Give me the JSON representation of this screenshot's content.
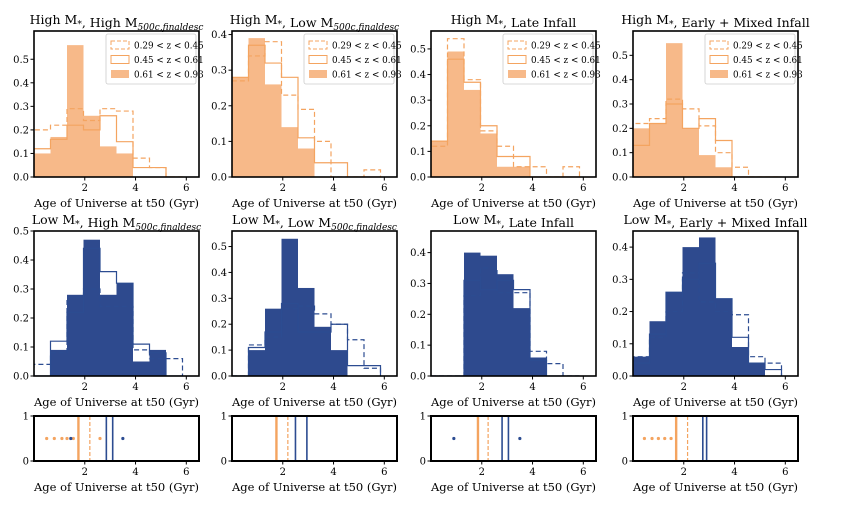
{
  "chart_data": {
    "type": "histogram-grid",
    "xlabel": "Age of Universe at t50 (Gyr)",
    "colors": {
      "orange": "#f4a460",
      "orange_fill": "#f7b989",
      "blue": "#2c4c91",
      "blue_fill": "#2e4a8e"
    },
    "legend": [
      "0.29 < z < 0.45",
      "0.45 < z < 0.61",
      "0.61 < z < 0.93"
    ],
    "panels": [
      {
        "title": "High M*, High M500c,finaldesc",
        "color": "orange",
        "legend": true,
        "xlim": [
          0,
          6.5
        ],
        "ylim": [
          0,
          0.62
        ],
        "xticks": [
          2,
          4,
          6
        ],
        "yticks": [
          0.0,
          0.1,
          0.2,
          0.3,
          0.4,
          0.5
        ],
        "edges": [
          0,
          0.65,
          1.3,
          1.95,
          2.6,
          3.25,
          3.9,
          4.55,
          5.2,
          5.85
        ],
        "series": [
          {
            "name": "0.29 < z < 0.45",
            "style": "dashed",
            "values": [
              0.2,
              0.22,
              0.29,
              0.24,
              0.29,
              0.28,
              0.08,
              0.04,
              0.0
            ]
          },
          {
            "name": "0.45 < z < 0.61",
            "style": "step",
            "values": [
              0.12,
              0.16,
              0.22,
              0.2,
              0.26,
              0.15,
              0.04,
              0.04,
              0.0
            ]
          },
          {
            "name": "0.61 < z < 0.93",
            "style": "filled",
            "values": [
              0.1,
              0.17,
              0.56,
              0.26,
              0.13,
              0.1,
              0.0,
              0.0,
              0.0
            ]
          }
        ]
      },
      {
        "title": "High M*, Low M500c,finaldesc",
        "color": "orange",
        "legend": true,
        "xlim": [
          0,
          6.5
        ],
        "ylim": [
          0,
          0.41
        ],
        "xticks": [
          2,
          4,
          6
        ],
        "yticks": [
          0.0,
          0.1,
          0.2,
          0.3,
          0.4
        ],
        "edges": [
          0,
          0.65,
          1.3,
          1.95,
          2.6,
          3.25,
          3.9,
          4.55,
          5.2,
          5.85
        ],
        "series": [
          {
            "name": "0.29 < z < 0.45",
            "style": "dashed",
            "values": [
              0.27,
              0.34,
              0.38,
              0.23,
              0.19,
              0.1,
              0.0,
              0.0,
              0.02
            ]
          },
          {
            "name": "0.45 < z < 0.61",
            "style": "step",
            "values": [
              0.28,
              0.37,
              0.32,
              0.28,
              0.11,
              0.04,
              0.04,
              0.0,
              0.0
            ]
          },
          {
            "name": "0.61 < z < 0.93",
            "style": "filled",
            "values": [
              0.28,
              0.39,
              0.26,
              0.14,
              0.08,
              0.0,
              0.0,
              0.0,
              0.0
            ]
          }
        ]
      },
      {
        "title": "High M*, Late Infall",
        "color": "orange",
        "legend": true,
        "xlim": [
          0,
          6.5
        ],
        "ylim": [
          0,
          0.57
        ],
        "xticks": [
          2,
          4,
          6
        ],
        "yticks": [
          0.0,
          0.1,
          0.2,
          0.3,
          0.4,
          0.5
        ],
        "edges": [
          0,
          0.65,
          1.3,
          1.95,
          2.6,
          3.25,
          3.9,
          4.55,
          5.2,
          5.85
        ],
        "series": [
          {
            "name": "0.29 < z < 0.45",
            "style": "dashed",
            "values": [
              0.12,
              0.54,
              0.38,
              0.18,
              0.12,
              0.04,
              0.04,
              0.0,
              0.04
            ]
          },
          {
            "name": "0.45 < z < 0.61",
            "style": "step",
            "values": [
              0.14,
              0.46,
              0.37,
              0.2,
              0.08,
              0.08,
              0.0,
              0.0,
              0.0
            ]
          },
          {
            "name": "0.61 < z < 0.93",
            "style": "filled",
            "values": [
              0.14,
              0.49,
              0.34,
              0.17,
              0.04,
              0.04,
              0.0,
              0.0,
              0.0
            ]
          }
        ]
      },
      {
        "title": "High M*, Early + Mixed Infall",
        "color": "orange",
        "legend": true,
        "xlim": [
          0,
          6.5
        ],
        "ylim": [
          0,
          0.6
        ],
        "xticks": [
          2,
          4,
          6
        ],
        "yticks": [
          0.0,
          0.1,
          0.2,
          0.3,
          0.4,
          0.5
        ],
        "edges": [
          0,
          0.65,
          1.3,
          1.95,
          2.6,
          3.25,
          3.9,
          4.55,
          5.2,
          5.85
        ],
        "series": [
          {
            "name": "0.29 < z < 0.45",
            "style": "dashed",
            "values": [
              0.22,
              0.24,
              0.32,
              0.28,
              0.21,
              0.1,
              0.04,
              0.0,
              0.0
            ]
          },
          {
            "name": "0.45 < z < 0.61",
            "style": "step",
            "values": [
              0.13,
              0.22,
              0.3,
              0.2,
              0.24,
              0.15,
              0.0,
              0.0,
              0.0
            ]
          },
          {
            "name": "0.61 < z < 0.93",
            "style": "filled",
            "values": [
              0.2,
              0.22,
              0.55,
              0.2,
              0.09,
              0.04,
              0.0,
              0.0,
              0.0
            ]
          }
        ]
      },
      {
        "title": "Low M*, High M500c,finaldesc",
        "color": "blue",
        "legend": false,
        "xlim": [
          0,
          6.5
        ],
        "ylim": [
          0,
          0.5
        ],
        "xticks": [
          2,
          4,
          6
        ],
        "yticks": [
          0.0,
          0.1,
          0.2,
          0.3,
          0.4,
          0.5
        ],
        "edges": [
          0,
          0.65,
          1.3,
          1.95,
          2.6,
          3.25,
          3.9,
          4.55,
          5.2,
          5.85
        ],
        "series": [
          {
            "name": "0.29 < z < 0.45",
            "style": "dashed",
            "values": [
              0.04,
              0.08,
              0.27,
              0.3,
              0.24,
              0.24,
              0.09,
              0.06,
              0.06
            ]
          },
          {
            "name": "0.45 < z < 0.61",
            "style": "step",
            "values": [
              0.0,
              0.12,
              0.22,
              0.44,
              0.36,
              0.32,
              0.11,
              0.08,
              0.0
            ]
          },
          {
            "name": "0.61 < z < 0.93",
            "style": "filled",
            "values": [
              0.0,
              0.09,
              0.28,
              0.47,
              0.28,
              0.32,
              0.05,
              0.09,
              0.0
            ]
          }
        ]
      },
      {
        "title": "Low M*, Low M500c,finaldesc",
        "color": "blue",
        "legend": false,
        "xlim": [
          0,
          6.5
        ],
        "ylim": [
          0,
          0.56
        ],
        "xticks": [
          2,
          4,
          6
        ],
        "yticks": [
          0.0,
          0.1,
          0.2,
          0.3,
          0.4,
          0.5
        ],
        "edges": [
          0,
          0.65,
          1.3,
          1.95,
          2.6,
          3.25,
          3.9,
          4.55,
          5.2,
          5.85
        ],
        "series": [
          {
            "name": "0.29 < z < 0.45",
            "style": "dashed",
            "values": [
              0.0,
              0.12,
              0.15,
              0.26,
              0.27,
              0.24,
              0.2,
              0.14,
              0.03
            ]
          },
          {
            "name": "0.45 < z < 0.61",
            "style": "step",
            "values": [
              0.0,
              0.11,
              0.17,
              0.28,
              0.17,
              0.17,
              0.2,
              0.04,
              0.04
            ]
          },
          {
            "name": "0.61 < z < 0.93",
            "style": "filled",
            "values": [
              0.0,
              0.1,
              0.26,
              0.53,
              0.34,
              0.19,
              0.1,
              0.0,
              0.0
            ]
          }
        ]
      },
      {
        "title": "Low M*, Late Infall",
        "color": "blue",
        "legend": false,
        "xlim": [
          0,
          6.5
        ],
        "ylim": [
          0,
          0.47
        ],
        "xticks": [
          2,
          4,
          6
        ],
        "yticks": [
          0.0,
          0.1,
          0.2,
          0.3,
          0.4
        ],
        "edges": [
          0,
          0.65,
          1.3,
          1.95,
          2.6,
          3.25,
          3.9,
          4.55,
          5.2,
          5.85
        ],
        "series": [
          {
            "name": "0.29 < z < 0.45",
            "style": "dashed",
            "values": [
              0.0,
              0.0,
              0.26,
              0.35,
              0.27,
              0.27,
              0.08,
              0.04,
              0.0
            ]
          },
          {
            "name": "0.45 < z < 0.61",
            "style": "step",
            "values": [
              0.0,
              0.0,
              0.31,
              0.28,
              0.31,
              0.28,
              0.05,
              0.0,
              0.0
            ]
          },
          {
            "name": "0.61 < z < 0.93",
            "style": "filled",
            "values": [
              0.0,
              0.0,
              0.4,
              0.39,
              0.33,
              0.22,
              0.06,
              0.0,
              0.0
            ]
          }
        ]
      },
      {
        "title": "Low M*, Early + Mixed Infall",
        "color": "blue",
        "legend": false,
        "xlim": [
          0,
          6.5
        ],
        "ylim": [
          0,
          0.45
        ],
        "xticks": [
          2,
          4,
          6
        ],
        "yticks": [
          0.0,
          0.1,
          0.2,
          0.3,
          0.4
        ],
        "edges": [
          0,
          0.65,
          1.3,
          1.95,
          2.6,
          3.25,
          3.9,
          4.55,
          5.2,
          5.85
        ],
        "series": [
          {
            "name": "0.29 < z < 0.45",
            "style": "dashed",
            "values": [
              0.06,
              0.12,
              0.2,
              0.32,
              0.23,
              0.2,
              0.19,
              0.06,
              0.04
            ]
          },
          {
            "name": "0.45 < z < 0.61",
            "style": "step",
            "values": [
              0.04,
              0.13,
              0.26,
              0.3,
              0.35,
              0.24,
              0.12,
              0.04,
              0.02
            ]
          },
          {
            "name": "0.61 < z < 0.93",
            "style": "filled",
            "values": [
              0.06,
              0.17,
              0.26,
              0.4,
              0.43,
              0.24,
              0.09,
              0.04,
              0.0
            ]
          }
        ]
      }
    ],
    "strips": [
      {
        "xlim": [
          0,
          6.5
        ],
        "ylim": [
          0,
          1
        ],
        "xticks": [
          2,
          4,
          6
        ],
        "yticks": [
          0,
          1
        ],
        "orange_lines": [
          {
            "x": 1.75,
            "style": "solid"
          },
          {
            "x": 2.2,
            "style": "dashed"
          }
        ],
        "blue_lines": [
          {
            "x": 2.85,
            "style": "solid"
          },
          {
            "x": 3.1,
            "style": "solid"
          }
        ],
        "orange_dots": [
          0.5,
          0.8,
          1.1,
          1.3,
          1.55,
          2.6
        ],
        "blue_dots": [
          1.45,
          3.5
        ]
      },
      {
        "xlim": [
          0,
          6.5
        ],
        "ylim": [
          0,
          1
        ],
        "xticks": [
          2,
          4,
          6
        ],
        "yticks": [
          0,
          1
        ],
        "orange_lines": [
          {
            "x": 1.75,
            "style": "solid"
          },
          {
            "x": 2.2,
            "style": "dashed"
          }
        ],
        "blue_lines": [
          {
            "x": 2.5,
            "style": "solid"
          },
          {
            "x": 2.95,
            "style": "solid"
          }
        ],
        "orange_dots": [],
        "blue_dots": []
      },
      {
        "xlim": [
          0,
          6.5
        ],
        "ylim": [
          0,
          1
        ],
        "xticks": [
          2,
          4,
          6
        ],
        "yticks": [
          0,
          1
        ],
        "orange_lines": [
          {
            "x": 1.85,
            "style": "solid"
          },
          {
            "x": 2.25,
            "style": "dashed"
          }
        ],
        "blue_lines": [
          {
            "x": 2.8,
            "style": "solid"
          },
          {
            "x": 3.05,
            "style": "solid"
          }
        ],
        "orange_dots": [],
        "blue_dots": [
          0.9,
          3.5
        ]
      },
      {
        "xlim": [
          0,
          6.5
        ],
        "ylim": [
          0,
          1
        ],
        "xticks": [
          2,
          4,
          6
        ],
        "yticks": [
          0,
          1
        ],
        "orange_lines": [
          {
            "x": 1.7,
            "style": "solid"
          },
          {
            "x": 2.15,
            "style": "dashed"
          }
        ],
        "blue_lines": [
          {
            "x": 2.75,
            "style": "solid"
          },
          {
            "x": 2.9,
            "style": "solid"
          }
        ],
        "orange_dots": [
          0.45,
          0.75,
          1.0,
          1.25,
          1.5
        ],
        "blue_dots": []
      }
    ]
  }
}
